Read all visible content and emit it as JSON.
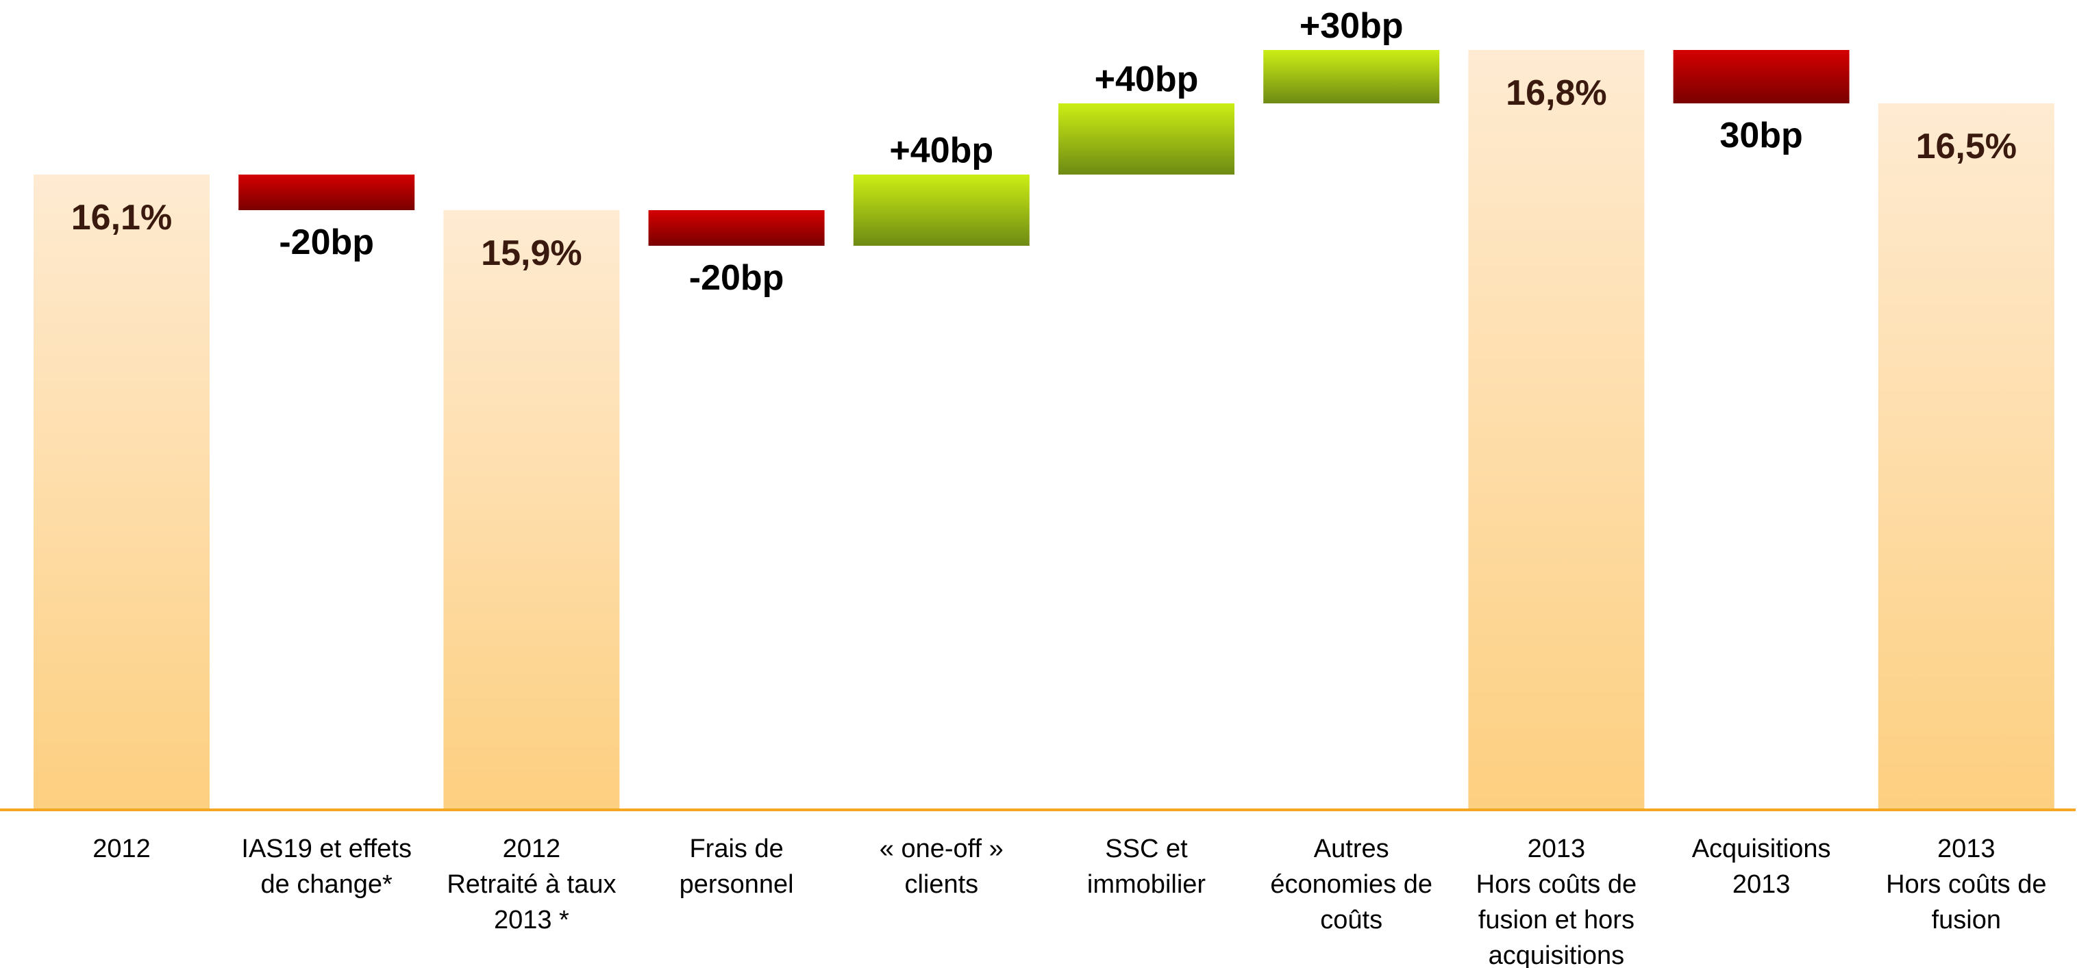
{
  "chart_data": {
    "type": "bar",
    "subtype": "waterfall",
    "unit": "%",
    "categories": [
      [
        "2012"
      ],
      [
        "IAS19 et effets",
        "de change*"
      ],
      [
        "2012",
        "Retraité à taux",
        "2013 *"
      ],
      [
        "Frais de",
        "personnel"
      ],
      [
        "« one-off »",
        "clients"
      ],
      [
        "SSC et",
        "immobilier"
      ],
      [
        "Autres",
        "économies de",
        "coûts"
      ],
      [
        "2013",
        "Hors coûts de",
        "fusion et hors",
        "acquisitions"
      ],
      [
        "Acquisitions",
        "2013"
      ],
      [
        "2013",
        "Hors coûts de",
        "fusion"
      ]
    ],
    "steps": [
      {
        "kind": "total",
        "value": 16.1,
        "label": "16,1%"
      },
      {
        "kind": "change",
        "value": -0.2,
        "label": "-20bp"
      },
      {
        "kind": "total",
        "value": 15.9,
        "label": "15,9%"
      },
      {
        "kind": "change",
        "value": -0.2,
        "label": "-20bp"
      },
      {
        "kind": "change",
        "value": 0.4,
        "label": "+40bp"
      },
      {
        "kind": "change",
        "value": 0.4,
        "label": "+40bp"
      },
      {
        "kind": "change",
        "value": 0.3,
        "label": "+30bp"
      },
      {
        "kind": "total",
        "value": 16.8,
        "label": "16,8%"
      },
      {
        "kind": "change",
        "value": -0.3,
        "label": "30bp"
      },
      {
        "kind": "total",
        "value": 16.5,
        "label": "16,5%"
      }
    ],
    "colors": {
      "total_top": "#FEEBD2",
      "total_bottom": "#FDCF80",
      "increase_top": "#CCEE14",
      "increase_bottom": "#6E8A14",
      "decrease_top": "#D40000",
      "decrease_bottom": "#7A0000",
      "axis": "#F5A623"
    },
    "grid": false,
    "legend": "none"
  }
}
